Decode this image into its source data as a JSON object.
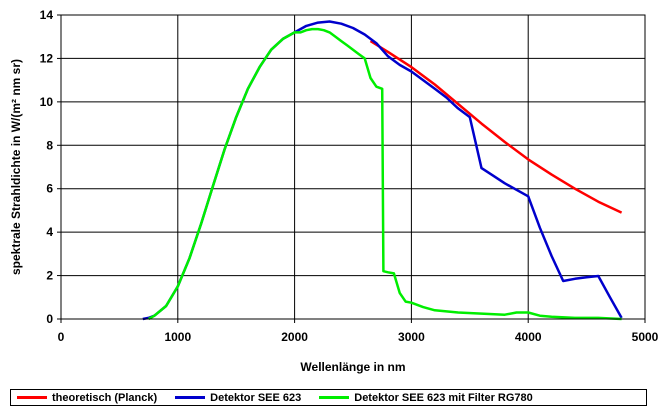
{
  "chart_data": {
    "type": "line",
    "title": "",
    "xlabel": "Wellenlänge in nm",
    "ylabel": "spektrale Strahldichte in W/(m² nm sr)",
    "xlim": [
      0,
      5000
    ],
    "ylim": [
      0,
      14
    ],
    "xticks": [
      0,
      1000,
      2000,
      3000,
      4000,
      5000
    ],
    "yticks": [
      0,
      2,
      4,
      6,
      8,
      10,
      12,
      14
    ],
    "grid": true,
    "legend_position": "bottom",
    "series": [
      {
        "name": "theoretisch (Planck)",
        "color": "#ff0000",
        "x": [
          2650,
          2800,
          3000,
          3200,
          3400,
          3600,
          3800,
          4000,
          4200,
          4400,
          4600,
          4800
        ],
        "y": [
          12.8,
          12.3,
          11.6,
          10.8,
          9.9,
          9.0,
          8.15,
          7.35,
          6.65,
          6.0,
          5.4,
          4.9
        ]
      },
      {
        "name": "Detektor SEE 623",
        "color": "#0000cc",
        "x": [
          700,
          750,
          800,
          900,
          1000,
          1100,
          1200,
          1300,
          1400,
          1500,
          1600,
          1700,
          1800,
          1900,
          2000,
          2100,
          2200,
          2300,
          2400,
          2500,
          2600,
          2700,
          2800,
          2900,
          3000,
          3100,
          3200,
          3300,
          3400,
          3500,
          3600,
          3700,
          3800,
          3900,
          4000,
          4100,
          4200,
          4300,
          4400,
          4500,
          4600,
          4700,
          4800
        ],
        "y": [
          0.0,
          0.05,
          0.15,
          0.6,
          1.5,
          2.8,
          4.4,
          6.1,
          7.8,
          9.3,
          10.6,
          11.6,
          12.4,
          12.9,
          13.2,
          13.5,
          13.65,
          13.7,
          13.6,
          13.4,
          13.1,
          12.7,
          12.1,
          11.7,
          11.4,
          11.0,
          10.6,
          10.2,
          9.7,
          9.3,
          6.95,
          6.6,
          6.25,
          5.95,
          5.65,
          4.2,
          2.9,
          1.75,
          1.85,
          1.92,
          1.98,
          1.0,
          0.05
        ]
      },
      {
        "name": "Detektor SEE 623 mit Filter RG780",
        "color": "#00ee00",
        "x": [
          750,
          800,
          900,
          1000,
          1100,
          1200,
          1300,
          1400,
          1500,
          1600,
          1700,
          1800,
          1900,
          2000,
          2050,
          2100,
          2150,
          2200,
          2250,
          2300,
          2350,
          2400,
          2450,
          2500,
          2550,
          2600,
          2650,
          2700,
          2750,
          2760,
          2800,
          2850,
          2900,
          2950,
          3000,
          3100,
          3200,
          3400,
          3600,
          3800,
          3900,
          4000,
          4100,
          4200,
          4400,
          4600,
          4800
        ],
        "y": [
          0.0,
          0.15,
          0.6,
          1.5,
          2.8,
          4.4,
          6.1,
          7.8,
          9.3,
          10.6,
          11.6,
          12.4,
          12.9,
          13.2,
          13.2,
          13.3,
          13.35,
          13.35,
          13.3,
          13.2,
          13.0,
          12.8,
          12.6,
          12.4,
          12.2,
          12.0,
          11.1,
          10.7,
          10.6,
          2.2,
          2.15,
          2.1,
          1.2,
          0.8,
          0.75,
          0.55,
          0.4,
          0.3,
          0.25,
          0.2,
          0.3,
          0.3,
          0.15,
          0.1,
          0.05,
          0.05,
          0.0
        ]
      }
    ]
  }
}
